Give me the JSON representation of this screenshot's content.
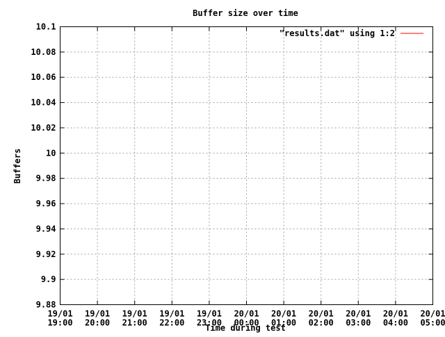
{
  "chart_data": {
    "type": "line",
    "title": "Buffer size over time",
    "xlabel": "Time during test",
    "ylabel": "Buffers",
    "ylim": [
      9.88,
      10.1
    ],
    "yticks": [
      "10.1",
      "10.08",
      "10.06",
      "10.04",
      "10.02",
      "10",
      "9.98",
      "9.96",
      "9.94",
      "9.92",
      "9.9",
      "9.88"
    ],
    "xticks": [
      {
        "date": "19/01",
        "time": "19:00"
      },
      {
        "date": "19/01",
        "time": "20:00"
      },
      {
        "date": "19/01",
        "time": "21:00"
      },
      {
        "date": "19/01",
        "time": "22:00"
      },
      {
        "date": "19/01",
        "time": "23:00"
      },
      {
        "date": "20/01",
        "time": "00:00"
      },
      {
        "date": "20/01",
        "time": "01:00"
      },
      {
        "date": "20/01",
        "time": "02:00"
      },
      {
        "date": "20/01",
        "time": "03:00"
      },
      {
        "date": "20/01",
        "time": "04:00"
      },
      {
        "date": "20/01",
        "time": "05:00"
      }
    ],
    "grid": true,
    "legend_position": "top-right",
    "series": [
      {
        "name": "\"results.dat\" using 1:2",
        "color": "#ff0000",
        "values": []
      }
    ]
  }
}
